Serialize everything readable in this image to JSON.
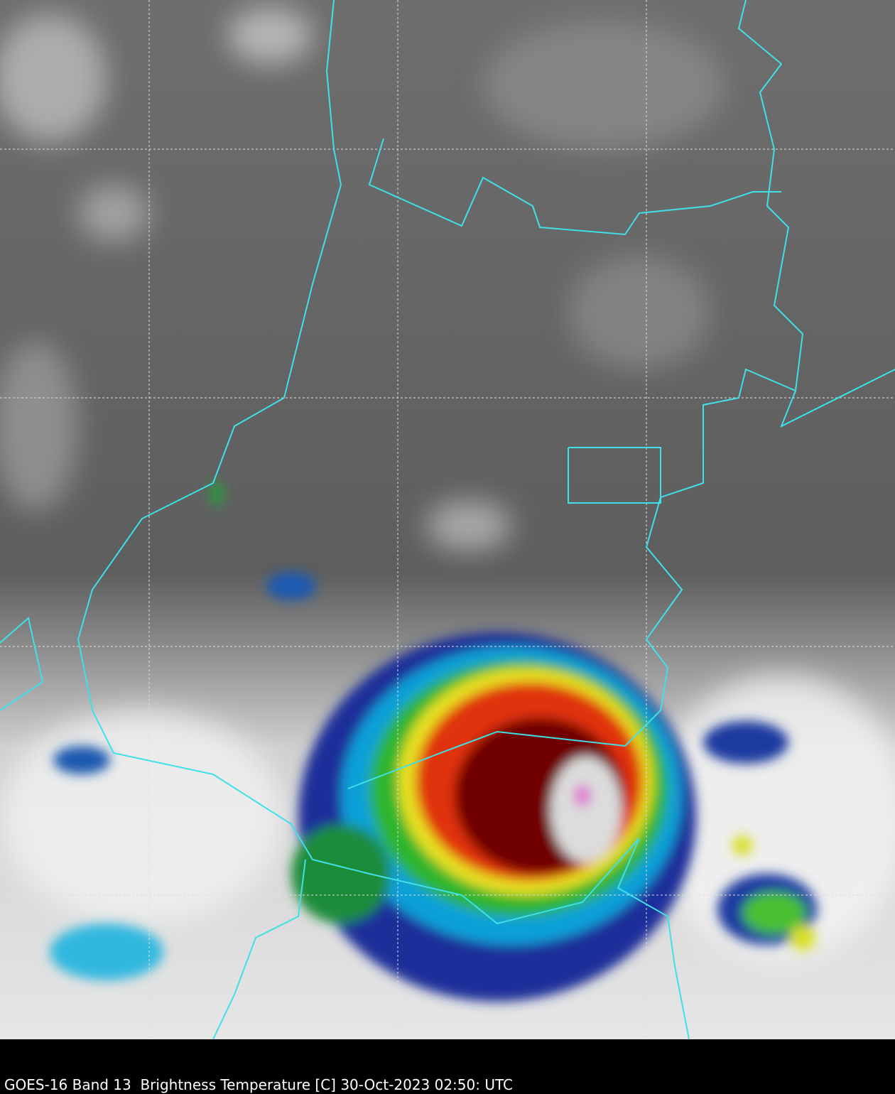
{
  "caption": "GOES-16 Band 13  Brightness Temperature [C] 30-Oct-2023 02:50: UTC"
}
